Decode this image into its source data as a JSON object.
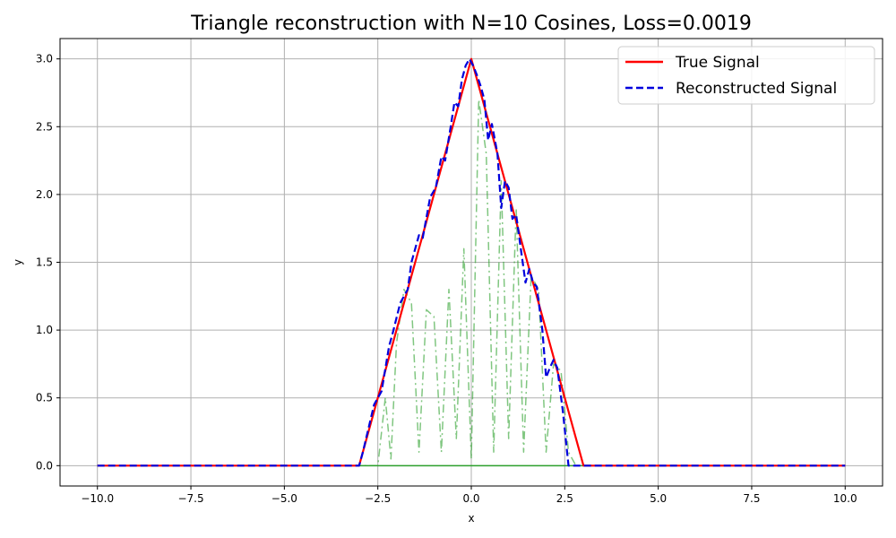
{
  "chart_data": {
    "type": "line",
    "title": "Triangle reconstruction with N=10 Cosines, Loss=0.0019",
    "xlabel": "x",
    "ylabel": "y",
    "xlim": [
      -11,
      11
    ],
    "ylim": [
      -0.15,
      3.15
    ],
    "xticks": [
      -10,
      -7.5,
      -5,
      -2.5,
      0,
      2.5,
      5,
      7.5,
      10
    ],
    "xtick_labels": [
      "−10.0",
      "−7.5",
      "−5.0",
      "−2.5",
      "0.0",
      "2.5",
      "5.0",
      "7.5",
      "10.0"
    ],
    "yticks": [
      0,
      0.5,
      1,
      1.5,
      2,
      2.5,
      3
    ],
    "ytick_labels": [
      "0.0",
      "0.5",
      "1.0",
      "1.5",
      "2.0",
      "2.5",
      "3.0"
    ],
    "grid": true,
    "legend_position": "top-right",
    "series": [
      {
        "name": "True Signal",
        "color": "#ff0000",
        "style": "solid",
        "x": [
          -10,
          -3,
          0,
          3,
          10
        ],
        "y": [
          0,
          0,
          3,
          0,
          0
        ]
      },
      {
        "name": "Reconstructed Signal",
        "color": "#0000dd",
        "style": "dashed",
        "x": [
          -10,
          -3,
          -2.9,
          -2.6,
          -2.4,
          -2.2,
          -2.1,
          -1.9,
          -1.7,
          -1.6,
          -1.4,
          -1.3,
          -1.1,
          -0.95,
          -0.8,
          -0.7,
          -0.55,
          -0.45,
          -0.35,
          -0.25,
          -0.15,
          -0.05,
          0.05,
          0.15,
          0.25,
          0.35,
          0.45,
          0.55,
          0.7,
          0.8,
          0.9,
          1.0,
          1.1,
          1.2,
          1.3,
          1.45,
          1.55,
          1.65,
          1.75,
          1.9,
          2.0,
          2.1,
          2.2,
          2.3,
          2.45,
          2.6,
          2.7,
          3,
          10
        ],
        "y": [
          0,
          0,
          0.1,
          0.45,
          0.55,
          0.88,
          0.98,
          1.2,
          1.3,
          1.5,
          1.7,
          1.68,
          1.98,
          2.05,
          2.28,
          2.25,
          2.5,
          2.68,
          2.65,
          2.85,
          2.95,
          3.0,
          2.95,
          2.88,
          2.8,
          2.7,
          2.4,
          2.52,
          2.3,
          1.9,
          2.1,
          2.05,
          1.82,
          1.85,
          1.65,
          1.35,
          1.45,
          1.35,
          1.32,
          1.0,
          0.65,
          0.72,
          0.78,
          0.72,
          0.4,
          0.0,
          0.0,
          0,
          0
        ]
      },
      {
        "name": "",
        "color": "#2ca02c",
        "style": "dashdot",
        "component": true,
        "x": [
          -10,
          -2.5,
          -2.3,
          -2.15,
          -2.0,
          -1.8,
          -1.6,
          -1.4,
          -1.2,
          -1.0,
          -0.8,
          -0.6,
          -0.4,
          -0.2,
          0.0,
          0.2,
          0.4,
          0.6,
          0.8,
          1.0,
          1.2,
          1.4,
          1.6,
          1.8,
          2.0,
          2.2,
          2.4,
          2.6,
          2.8,
          10
        ],
        "y": [
          0,
          0,
          0.5,
          0.05,
          0.9,
          1.3,
          1.2,
          0.1,
          1.15,
          1.1,
          0.1,
          1.3,
          0.2,
          1.6,
          0.05,
          2.7,
          2.3,
          0.1,
          2.1,
          0.2,
          1.9,
          0.1,
          1.4,
          1.3,
          0.1,
          0.75,
          0.7,
          0.1,
          0,
          0
        ]
      }
    ]
  }
}
